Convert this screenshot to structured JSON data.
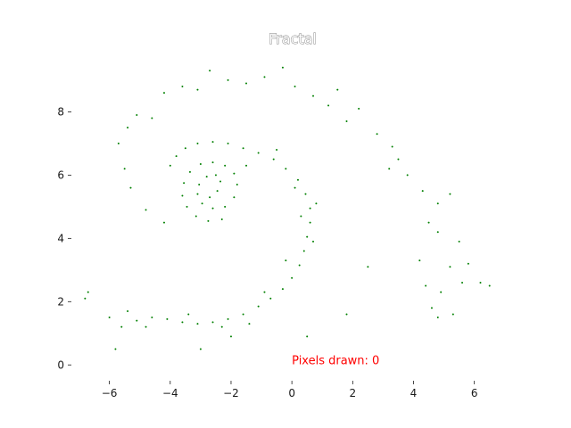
{
  "chart_data": {
    "type": "scatter",
    "title": "Fractal",
    "xlabel": "",
    "ylabel": "",
    "xlim": [
      -7.25,
      7.3
    ],
    "ylim": [
      -0.5,
      9.9
    ],
    "grid": false,
    "frame": false,
    "x_ticks": [
      -6,
      -4,
      -2,
      0,
      2,
      4,
      6
    ],
    "x_tick_labels": [
      "−6",
      "−4",
      "−2",
      "0",
      "2",
      "4",
      "6"
    ],
    "y_ticks": [
      0,
      2,
      4,
      6,
      8
    ],
    "y_tick_labels": [
      "0",
      "2",
      "4",
      "6",
      "8"
    ],
    "point_color": "#008000",
    "annotation": {
      "text": "Pixels drawn: 0",
      "x": 0,
      "y": 0,
      "color": "#ff0000"
    },
    "series": [
      {
        "points": [
          [
            -2.7,
            5.3
          ],
          [
            -2.45,
            5.5
          ],
          [
            -2.35,
            5.8
          ],
          [
            -2.5,
            6.0
          ],
          [
            -2.8,
            5.95
          ],
          [
            -3.05,
            5.7
          ],
          [
            -3.1,
            5.4
          ],
          [
            -2.95,
            5.1
          ],
          [
            -2.6,
            4.95
          ],
          [
            -2.2,
            5.0
          ],
          [
            -1.9,
            5.3
          ],
          [
            -1.8,
            5.7
          ],
          [
            -1.9,
            6.05
          ],
          [
            -2.2,
            6.3
          ],
          [
            -2.6,
            6.4
          ],
          [
            -3.0,
            6.35
          ],
          [
            -3.35,
            6.1
          ],
          [
            -3.55,
            5.75
          ],
          [
            -3.6,
            5.35
          ],
          [
            -3.45,
            5.0
          ],
          [
            -3.15,
            4.7
          ],
          [
            -2.75,
            4.55
          ],
          [
            -2.3,
            4.6
          ],
          [
            -4.0,
            6.3
          ],
          [
            -3.8,
            6.6
          ],
          [
            -3.5,
            6.85
          ],
          [
            -3.1,
            7.0
          ],
          [
            -2.6,
            7.05
          ],
          [
            -2.1,
            7.0
          ],
          [
            -1.6,
            6.85
          ],
          [
            -1.1,
            6.7
          ],
          [
            -0.6,
            6.5
          ],
          [
            -0.2,
            6.2
          ],
          [
            0.2,
            5.85
          ],
          [
            0.45,
            5.4
          ],
          [
            0.6,
            4.95
          ],
          [
            0.6,
            4.5
          ],
          [
            0.5,
            4.05
          ],
          [
            0.4,
            3.6
          ],
          [
            0.25,
            3.15
          ],
          [
            0.0,
            2.75
          ],
          [
            -0.3,
            2.4
          ],
          [
            -0.7,
            2.1
          ],
          [
            -1.1,
            1.85
          ],
          [
            -1.6,
            1.6
          ],
          [
            -2.1,
            1.45
          ],
          [
            -2.6,
            1.35
          ],
          [
            -3.1,
            1.3
          ],
          [
            -3.6,
            1.35
          ],
          [
            -4.1,
            1.45
          ],
          [
            -4.6,
            1.5
          ],
          [
            -5.1,
            1.4
          ],
          [
            -5.6,
            1.2
          ],
          [
            -6.0,
            1.5
          ],
          [
            -5.4,
            1.7
          ],
          [
            -4.8,
            1.2
          ],
          [
            -3.4,
            1.6
          ],
          [
            -2.3,
            1.2
          ],
          [
            -1.4,
            1.3
          ],
          [
            -0.9,
            2.3
          ],
          [
            -0.2,
            3.3
          ],
          [
            0.7,
            3.9
          ],
          [
            0.3,
            4.7
          ],
          [
            0.8,
            5.1
          ],
          [
            0.1,
            5.6
          ],
          [
            -0.5,
            6.8
          ],
          [
            -1.5,
            6.3
          ],
          [
            -4.2,
            4.5
          ],
          [
            -4.8,
            4.9
          ],
          [
            -5.3,
            5.6
          ],
          [
            -5.5,
            6.2
          ],
          [
            -5.7,
            7.0
          ],
          [
            -5.4,
            7.5
          ],
          [
            -5.1,
            7.9
          ],
          [
            -4.6,
            7.8
          ],
          [
            -4.2,
            8.6
          ],
          [
            -3.6,
            8.8
          ],
          [
            -3.1,
            8.7
          ],
          [
            -2.7,
            9.3
          ],
          [
            -2.1,
            9.0
          ],
          [
            -1.5,
            8.9
          ],
          [
            -0.9,
            9.1
          ],
          [
            -0.3,
            9.4
          ],
          [
            0.1,
            8.8
          ],
          [
            0.7,
            8.5
          ],
          [
            1.2,
            8.2
          ],
          [
            1.5,
            8.7
          ],
          [
            1.8,
            7.7
          ],
          [
            2.2,
            8.1
          ],
          [
            2.8,
            7.3
          ],
          [
            3.3,
            6.9
          ],
          [
            3.5,
            6.5
          ],
          [
            3.2,
            6.2
          ],
          [
            3.8,
            6.0
          ],
          [
            4.3,
            5.5
          ],
          [
            4.8,
            5.1
          ],
          [
            5.2,
            5.4
          ],
          [
            4.5,
            4.5
          ],
          [
            4.8,
            4.2
          ],
          [
            5.5,
            3.9
          ],
          [
            4.2,
            3.3
          ],
          [
            5.2,
            3.1
          ],
          [
            5.8,
            3.2
          ],
          [
            5.6,
            2.6
          ],
          [
            4.4,
            2.5
          ],
          [
            4.9,
            2.3
          ],
          [
            4.6,
            1.8
          ],
          [
            5.3,
            1.6
          ],
          [
            6.2,
            2.6
          ],
          [
            6.5,
            2.5
          ],
          [
            4.8,
            1.5
          ],
          [
            2.5,
            3.1
          ],
          [
            1.8,
            1.6
          ],
          [
            -6.7,
            2.3
          ],
          [
            -6.8,
            2.1
          ],
          [
            -5.8,
            0.5
          ],
          [
            -3.0,
            0.5
          ],
          [
            -2.0,
            0.9
          ],
          [
            0.5,
            0.9
          ]
        ]
      }
    ]
  }
}
